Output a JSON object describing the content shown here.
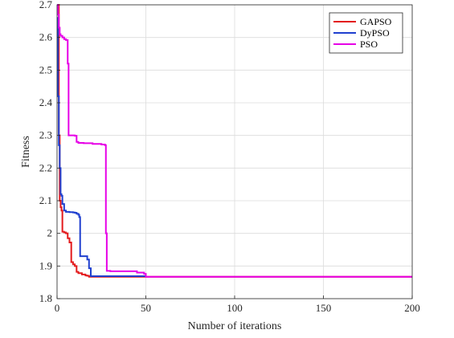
{
  "chart_data": {
    "type": "line",
    "title": "",
    "xlabel": "Number of iterations",
    "ylabel": "Fitness",
    "xlim": [
      0,
      200
    ],
    "ylim": [
      1.8,
      2.7
    ],
    "xticks": [
      0,
      50,
      100,
      150,
      200
    ],
    "yticks": [
      1.8,
      1.9,
      2,
      2.1,
      2.2,
      2.3,
      2.4,
      2.5,
      2.6,
      2.7
    ],
    "grid": true,
    "legend_position": "top-right",
    "series": [
      {
        "name": "GAPSO",
        "color": "#e31a1c",
        "x": [
          0,
          1,
          1.5,
          2,
          2.5,
          3,
          3.5,
          4,
          5,
          6,
          7,
          8,
          9,
          10,
          11,
          12,
          14,
          16,
          17,
          18,
          200
        ],
        "y": [
          2.7,
          2.3,
          2.1,
          2.08,
          2.07,
          2.005,
          2.005,
          2.003,
          2.0,
          1.985,
          1.972,
          1.912,
          1.905,
          1.9,
          1.882,
          1.878,
          1.874,
          1.871,
          1.87,
          1.867,
          1.867
        ]
      },
      {
        "name": "DyPSO",
        "color": "#1f3fcf",
        "x": [
          0,
          0.5,
          1,
          1.5,
          2,
          2.5,
          3,
          4,
          5,
          6,
          7,
          8,
          9,
          10,
          11,
          12,
          12.5,
          13,
          14,
          15,
          16,
          17,
          18,
          19,
          50
        ],
        "y": [
          2.66,
          2.42,
          2.27,
          2.2,
          2.12,
          2.115,
          2.09,
          2.07,
          2.066,
          2.066,
          2.065,
          2.065,
          2.064,
          2.063,
          2.06,
          2.057,
          2.05,
          1.93,
          1.93,
          1.93,
          1.93,
          1.92,
          1.893,
          1.869,
          1.869
        ]
      },
      {
        "name": "PSO",
        "color": "#e600e6",
        "x": [
          0,
          0.5,
          1,
          1.5,
          2,
          3,
          4,
          5,
          6,
          6.5,
          7,
          8,
          10,
          11,
          12,
          15,
          20,
          25,
          27,
          27.5,
          28,
          30,
          40,
          45,
          49,
          50,
          200
        ],
        "y": [
          2.7,
          2.67,
          2.63,
          2.61,
          2.605,
          2.6,
          2.595,
          2.592,
          2.52,
          2.3,
          2.3,
          2.3,
          2.299,
          2.28,
          2.277,
          2.276,
          2.274,
          2.272,
          2.27,
          2.0,
          1.885,
          1.884,
          1.884,
          1.88,
          1.876,
          1.867,
          1.867
        ]
      }
    ]
  }
}
